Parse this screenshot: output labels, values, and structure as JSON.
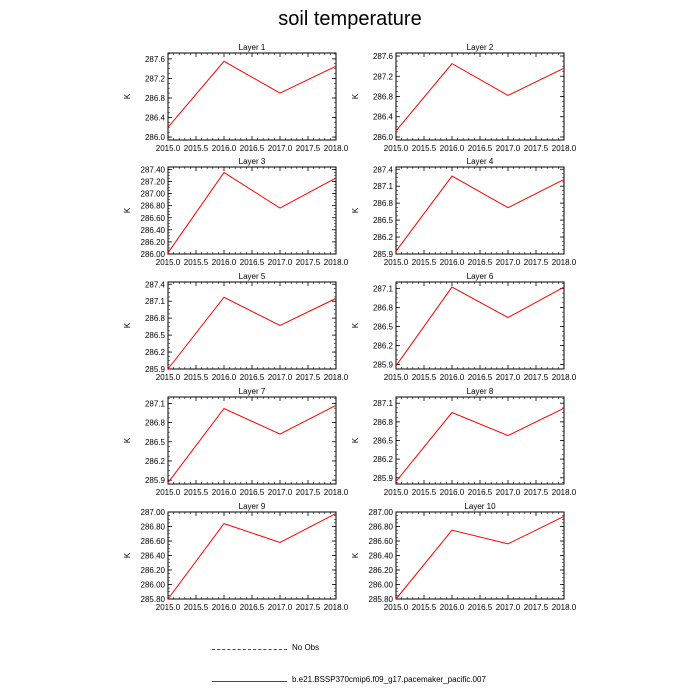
{
  "title": "soil temperature",
  "colors": {
    "model_line": "#ff0000",
    "obs_line": "#3a3aa0",
    "axis": "#000000"
  },
  "legend": {
    "obs_label": "No Obs",
    "model_label": "b.e21.BSSP370cmip6.f09_g17.pacemaker_pacific.007"
  },
  "chart_data": [
    {
      "type": "line",
      "title": "Layer 1",
      "xlabel": "",
      "ylabel": "K",
      "xlim": [
        2015.0,
        2018.0
      ],
      "ylim": [
        285.94,
        287.72
      ],
      "x_ticks": [
        "2015.0",
        "2015.5",
        "2016.0",
        "2016.5",
        "2017.0",
        "2017.5",
        "2018.0"
      ],
      "y_ticks": [
        "286.0",
        "286.4",
        "286.8",
        "287.2",
        "287.6"
      ],
      "series": [
        {
          "x": [
            2015.0,
            2016.0,
            2017.0,
            2018.0
          ],
          "values": [
            286.2,
            287.55,
            286.9,
            287.45
          ]
        }
      ]
    },
    {
      "type": "line",
      "title": "Layer 2",
      "xlabel": "",
      "ylabel": "K",
      "xlim": [
        2015.0,
        2018.0
      ],
      "ylim": [
        285.94,
        287.66
      ],
      "x_ticks": [
        "2015.0",
        "2015.5",
        "2016.0",
        "2016.5",
        "2017.0",
        "2017.5",
        "2018.0"
      ],
      "y_ticks": [
        "286.0",
        "286.4",
        "286.8",
        "287.2",
        "287.6"
      ],
      "series": [
        {
          "x": [
            2015.0,
            2016.0,
            2017.0,
            2018.0
          ],
          "values": [
            286.12,
            287.45,
            286.82,
            287.36
          ]
        }
      ]
    },
    {
      "type": "line",
      "title": "Layer 3",
      "xlabel": "",
      "ylabel": "K",
      "xlim": [
        2015.0,
        2018.0
      ],
      "ylim": [
        286.0,
        287.44
      ],
      "x_ticks": [
        "2015.0",
        "2015.5",
        "2016.0",
        "2016.5",
        "2017.0",
        "2017.5",
        "2018.0"
      ],
      "y_ticks": [
        "286.00",
        "286.20",
        "286.40",
        "286.60",
        "286.80",
        "287.00",
        "287.20",
        "287.40"
      ],
      "series": [
        {
          "x": [
            2015.0,
            2016.0,
            2017.0,
            2018.0
          ],
          "values": [
            286.02,
            287.35,
            286.76,
            287.26
          ]
        }
      ]
    },
    {
      "type": "line",
      "title": "Layer 4",
      "xlabel": "",
      "ylabel": "K",
      "xlim": [
        2015.0,
        2018.0
      ],
      "ylim": [
        285.9,
        287.44
      ],
      "x_ticks": [
        "2015.0",
        "2015.5",
        "2016.0",
        "2016.5",
        "2017.0",
        "2017.5",
        "2018.0"
      ],
      "y_ticks": [
        "285.9",
        "286.2",
        "286.5",
        "286.8",
        "287.1",
        "287.4"
      ],
      "series": [
        {
          "x": [
            2015.0,
            2016.0,
            2017.0,
            2018.0
          ],
          "values": [
            285.95,
            287.28,
            286.72,
            287.22
          ]
        }
      ]
    },
    {
      "type": "line",
      "title": "Layer 5",
      "xlabel": "",
      "ylabel": "K",
      "xlim": [
        2015.0,
        2018.0
      ],
      "ylim": [
        285.9,
        287.44
      ],
      "x_ticks": [
        "2015.0",
        "2015.5",
        "2016.0",
        "2016.5",
        "2017.0",
        "2017.5",
        "2018.0"
      ],
      "y_ticks": [
        "285.9",
        "286.2",
        "286.5",
        "286.8",
        "287.1",
        "287.4"
      ],
      "series": [
        {
          "x": [
            2015.0,
            2016.0,
            2017.0,
            2018.0
          ],
          "values": [
            285.9,
            287.17,
            286.67,
            287.15
          ]
        }
      ]
    },
    {
      "type": "line",
      "title": "Layer 6",
      "xlabel": "",
      "ylabel": "K",
      "xlim": [
        2015.0,
        2018.0
      ],
      "ylim": [
        285.83,
        287.2
      ],
      "x_ticks": [
        "2015.0",
        "2015.5",
        "2016.0",
        "2016.5",
        "2017.0",
        "2017.5",
        "2018.0"
      ],
      "y_ticks": [
        "285.9",
        "286.2",
        "286.5",
        "286.8",
        "287.1"
      ],
      "series": [
        {
          "x": [
            2015.0,
            2016.0,
            2017.0,
            2018.0
          ],
          "values": [
            285.88,
            287.12,
            286.64,
            287.12
          ]
        }
      ]
    },
    {
      "type": "line",
      "title": "Layer 7",
      "xlabel": "",
      "ylabel": "K",
      "xlim": [
        2015.0,
        2018.0
      ],
      "ylim": [
        285.84,
        287.2
      ],
      "x_ticks": [
        "2015.0",
        "2015.5",
        "2016.0",
        "2016.5",
        "2017.0",
        "2017.5",
        "2018.0"
      ],
      "y_ticks": [
        "285.9",
        "286.2",
        "286.5",
        "286.8",
        "287.1"
      ],
      "series": [
        {
          "x": [
            2015.0,
            2016.0,
            2017.0,
            2018.0
          ],
          "values": [
            285.86,
            287.02,
            286.62,
            287.07
          ]
        }
      ]
    },
    {
      "type": "line",
      "title": "Layer 8",
      "xlabel": "",
      "ylabel": "K",
      "xlim": [
        2015.0,
        2018.0
      ],
      "ylim": [
        285.8,
        287.2
      ],
      "x_ticks": [
        "2015.0",
        "2015.5",
        "2016.0",
        "2016.5",
        "2017.0",
        "2017.5",
        "2018.0"
      ],
      "y_ticks": [
        "285.9",
        "286.2",
        "286.5",
        "286.8",
        "287.1"
      ],
      "series": [
        {
          "x": [
            2015.0,
            2016.0,
            2017.0,
            2018.0
          ],
          "values": [
            285.84,
            286.95,
            286.58,
            287.02
          ]
        }
      ]
    },
    {
      "type": "line",
      "title": "Layer 9",
      "xlabel": "",
      "ylabel": "K",
      "xlim": [
        2015.0,
        2018.0
      ],
      "ylim": [
        285.8,
        287.0
      ],
      "x_ticks": [
        "2015.0",
        "2015.5",
        "2016.0",
        "2016.5",
        "2017.0",
        "2017.5",
        "2018.0"
      ],
      "y_ticks": [
        "285.80",
        "286.00",
        "286.20",
        "286.40",
        "286.60",
        "286.80",
        "287.00"
      ],
      "series": [
        {
          "x": [
            2015.0,
            2016.0,
            2017.0,
            2018.0
          ],
          "values": [
            285.8,
            286.84,
            286.58,
            286.98
          ]
        }
      ]
    },
    {
      "type": "line",
      "title": "Layer 10",
      "xlabel": "",
      "ylabel": "K",
      "xlim": [
        2015.0,
        2018.0
      ],
      "ylim": [
        285.8,
        287.0
      ],
      "x_ticks": [
        "2015.0",
        "2015.5",
        "2016.0",
        "2016.5",
        "2017.0",
        "2017.5",
        "2018.0"
      ],
      "y_ticks": [
        "285.80",
        "286.00",
        "286.20",
        "286.40",
        "286.60",
        "286.80",
        "287.00"
      ],
      "series": [
        {
          "x": [
            2015.0,
            2016.0,
            2017.0,
            2018.0
          ],
          "values": [
            285.8,
            286.75,
            286.56,
            286.94
          ]
        }
      ]
    }
  ]
}
